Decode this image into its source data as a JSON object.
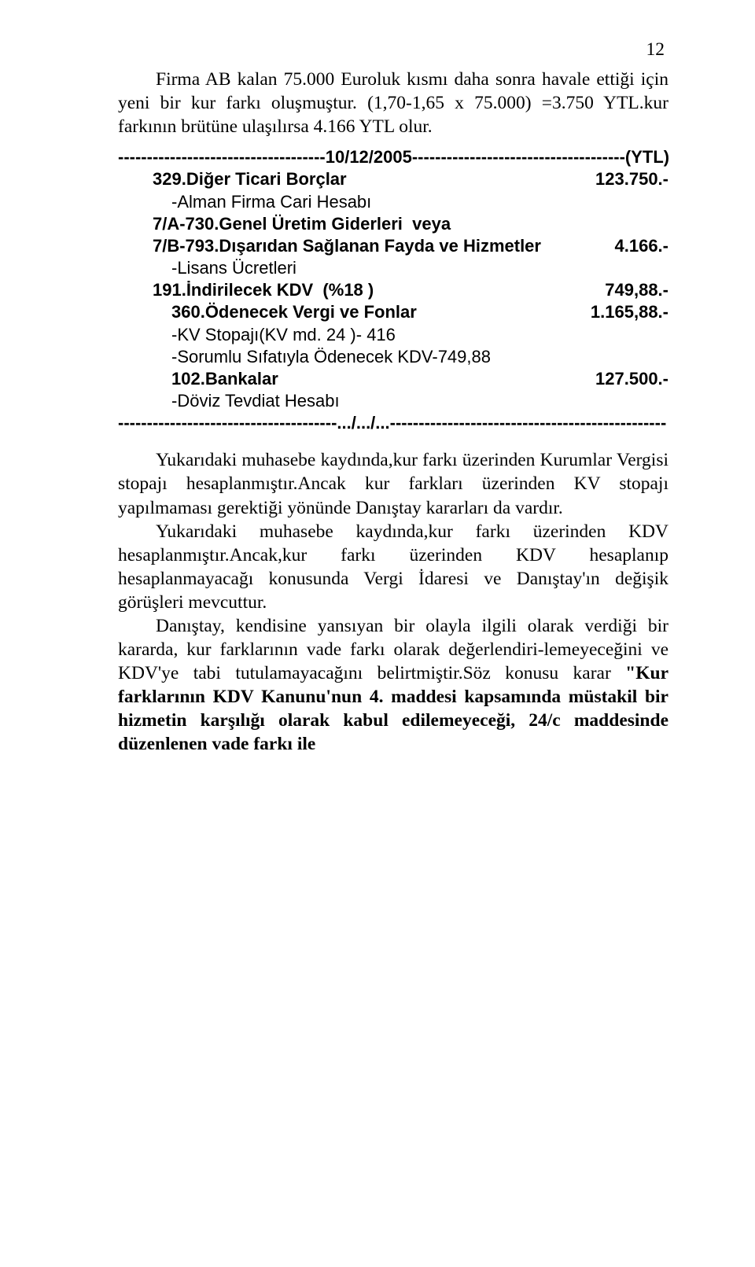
{
  "page_number": "12",
  "intro": "Firma AB kalan 75.000 Euroluk kısmı daha sonra havale ettiği için yeni bir kur farkı oluşmuştur. (1,70-1,65 x 75.000) =3.750 YTL.kur farkının brütüne ulaşılırsa 4.166 YTL olur.",
  "ledger": {
    "header_left": "------------------------------------10/12/2005-------------------------------------(YTL)",
    "rows": [
      {
        "label": "329.Diğer Ticari Borçlar",
        "value": "123.750.-",
        "bold": true,
        "indent": 1
      },
      {
        "label": "-Alman Firma Cari Hesabı",
        "value": "",
        "bold": false,
        "indent": 2
      },
      {
        "label": "7/A-730.Genel Üretim Giderleri  veya",
        "value": "",
        "bold": true,
        "indent": 1
      },
      {
        "label": "7/B-793.Dışarıdan Sağlanan Fayda ve Hizmetler",
        "value": "4.166.-",
        "bold": true,
        "indent": 1
      },
      {
        "label": "-Lisans Ücretleri",
        "value": "",
        "bold": false,
        "indent": 2
      },
      {
        "label": "191.İndirilecek KDV  (%18 )",
        "value": "749,88.-",
        "bold": true,
        "indent": 1
      },
      {
        "label": "360.Ödenecek Vergi ve Fonlar",
        "value": "1.165,88.-",
        "bold": true,
        "indent": 2
      },
      {
        "label": "-KV Stopajı(KV md. 24 )- 416",
        "value": "",
        "bold": false,
        "indent": 2
      },
      {
        "label": "-Sorumlu Sıfatıyla Ödenecek KDV-749,88",
        "value": "",
        "bold": false,
        "indent": 2
      },
      {
        "label": "102.Bankalar",
        "value": "127.500.-",
        "bold": true,
        "indent": 2
      },
      {
        "label": "-Döviz Tevdiat Hesabı",
        "value": "",
        "bold": false,
        "indent": 2
      }
    ],
    "footer": "--------------------------------------.../.../...------------------------------------------------"
  },
  "body": {
    "p1": "Yukarıdaki muhasebe kaydında,kur farkı üzerinden Kurumlar Vergisi stopajı hesaplanmıştır.Ancak kur farkları üzerinden KV stopajı yapılmaması gerektiği yönünde Danıştay kararları da vardır.",
    "p2": "Yukarıdaki muhasebe kaydında,kur farkı üzerinden KDV hesaplanmıştır.Ancak,kur farkı üzerinden KDV hesaplanıp hesaplanmayacağı konusunda Vergi İdaresi ve Danıştay'ın değişik görüşleri mevcuttur.",
    "p3_a": "Danıştay, kendisine yansıyan bir olayla ilgili olarak verdiği bir kararda, kur farklarının vade farkı olarak değerlendiri-lemeyeceğini ve KDV'ye tabi tutulamayacağını belirtmiştir.Söz konusu karar ",
    "p3_b": "\"Kur farklarının KDV Kanunu'nun 4. maddesi kapsamında müstakil bir hizmetin karşılığı olarak kabul edilemeyeceği, 24/c maddesinde düzenlenen vade farkı ile"
  }
}
